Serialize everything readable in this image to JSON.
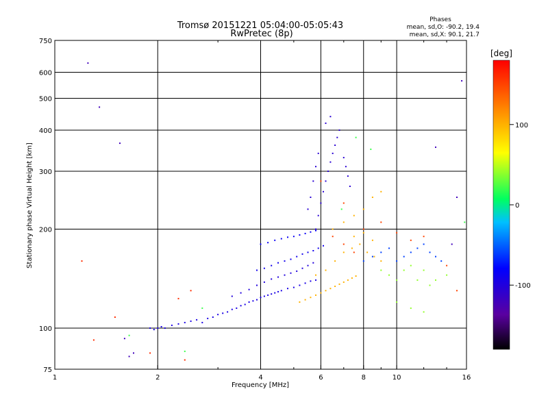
{
  "chart_data": {
    "type": "scatter",
    "title": "Tromsø 20151221 05:04:00-05:05:43",
    "subtitle": "RwPretec (8p)",
    "xlabel": "Frequency [MHz]",
    "ylabel": "Stationary phase Virtual Height [km]",
    "x_scale": "log",
    "y_scale": "log",
    "xlim": [
      1,
      16
    ],
    "ylim": [
      75,
      750
    ],
    "x_ticks": [
      1,
      2,
      4,
      6,
      8,
      10,
      16
    ],
    "y_ticks": [
      75,
      100,
      200,
      300,
      400,
      500,
      600,
      750
    ],
    "x_grid": [
      2,
      4,
      6,
      8,
      10
    ],
    "y_grid": [
      100,
      200,
      300,
      400,
      500,
      600
    ],
    "grid": true,
    "phase_stats": {
      "title": "Phases",
      "line_o": "mean, sd,O: -90.2, 19.4",
      "line_x": "mean, sd,X: 90.1, 21.7"
    },
    "colorbar": {
      "label": "[deg]",
      "ticks": [
        100,
        0,
        -100
      ],
      "range": [
        -180,
        180
      ],
      "colors": [
        "#000000",
        "#5a00a0",
        "#0000ff",
        "#00c0ff",
        "#00ff60",
        "#ffff00",
        "#ff8000",
        "#ff0000"
      ]
    },
    "clusters": [
      {
        "phase": -95,
        "points": [
          [
            1.9,
            100
          ],
          [
            1.95,
            99
          ],
          [
            2.0,
            100
          ],
          [
            2.05,
            101
          ],
          [
            2.1,
            100
          ],
          [
            2.2,
            102
          ],
          [
            2.3,
            103
          ],
          [
            2.4,
            104
          ],
          [
            2.5,
            105
          ],
          [
            2.6,
            106
          ],
          [
            2.7,
            104
          ],
          [
            2.8,
            107
          ],
          [
            2.9,
            108
          ],
          [
            3.0,
            110
          ],
          [
            3.1,
            111
          ],
          [
            3.2,
            112
          ],
          [
            3.3,
            114
          ],
          [
            3.4,
            115
          ],
          [
            3.5,
            117
          ],
          [
            3.6,
            118
          ],
          [
            3.7,
            120
          ],
          [
            3.8,
            121
          ],
          [
            3.9,
            122
          ],
          [
            4.0,
            124
          ],
          [
            4.1,
            125
          ],
          [
            4.2,
            126
          ],
          [
            4.3,
            127
          ],
          [
            4.4,
            128
          ],
          [
            4.5,
            129
          ],
          [
            4.6,
            130
          ],
          [
            4.8,
            132
          ],
          [
            5.0,
            133
          ],
          [
            5.2,
            135
          ],
          [
            5.4,
            137
          ],
          [
            5.6,
            139
          ],
          [
            5.8,
            140
          ]
        ]
      },
      {
        "phase": -100,
        "points": [
          [
            3.3,
            125
          ],
          [
            3.5,
            128
          ],
          [
            3.7,
            131
          ],
          [
            3.9,
            135
          ],
          [
            4.1,
            138
          ],
          [
            4.3,
            141
          ],
          [
            4.5,
            143
          ],
          [
            4.7,
            145
          ],
          [
            4.9,
            147
          ],
          [
            5.1,
            149
          ],
          [
            5.3,
            152
          ],
          [
            5.5,
            155
          ],
          [
            5.7,
            158
          ]
        ]
      },
      {
        "phase": -90,
        "points": [
          [
            3.9,
            150
          ],
          [
            4.1,
            152
          ],
          [
            4.3,
            155
          ],
          [
            4.5,
            158
          ],
          [
            4.7,
            160
          ],
          [
            4.9,
            162
          ],
          [
            5.1,
            165
          ],
          [
            5.3,
            168
          ],
          [
            5.5,
            170
          ],
          [
            5.7,
            172
          ],
          [
            5.9,
            175
          ],
          [
            6.1,
            178
          ]
        ]
      },
      {
        "phase": -85,
        "points": [
          [
            4.0,
            180
          ],
          [
            4.2,
            182
          ],
          [
            4.4,
            185
          ],
          [
            4.6,
            187
          ],
          [
            4.8,
            189
          ],
          [
            5.0,
            190
          ],
          [
            5.2,
            192
          ],
          [
            5.4,
            194
          ],
          [
            5.6,
            196
          ],
          [
            5.8,
            198
          ]
        ]
      },
      {
        "phase": -105,
        "points": [
          [
            5.8,
            200
          ],
          [
            5.9,
            220
          ],
          [
            6.0,
            240
          ],
          [
            6.1,
            260
          ],
          [
            6.2,
            280
          ],
          [
            6.3,
            300
          ],
          [
            6.4,
            320
          ],
          [
            6.5,
            340
          ],
          [
            6.6,
            360
          ],
          [
            6.7,
            380
          ],
          [
            6.8,
            400
          ],
          [
            7.0,
            330
          ],
          [
            7.1,
            310
          ],
          [
            7.2,
            290
          ],
          [
            7.3,
            270
          ],
          [
            5.5,
            230
          ],
          [
            5.6,
            250
          ],
          [
            5.7,
            280
          ],
          [
            5.8,
            310
          ],
          [
            5.9,
            340
          ],
          [
            6.2,
            420
          ],
          [
            6.4,
            440
          ]
        ]
      },
      {
        "phase": 100,
        "points": [
          [
            5.2,
            120
          ],
          [
            5.4,
            122
          ],
          [
            5.6,
            124
          ],
          [
            5.8,
            126
          ],
          [
            6.0,
            128
          ],
          [
            6.2,
            130
          ],
          [
            6.4,
            132
          ],
          [
            6.6,
            134
          ],
          [
            6.8,
            136
          ],
          [
            7.0,
            138
          ],
          [
            7.2,
            140
          ],
          [
            7.4,
            142
          ],
          [
            7.6,
            144
          ],
          [
            5.8,
            145
          ],
          [
            6.2,
            150
          ],
          [
            6.6,
            160
          ],
          [
            7.0,
            170
          ],
          [
            7.4,
            175
          ],
          [
            7.8,
            180
          ],
          [
            8.2,
            170
          ],
          [
            8.6,
            165
          ],
          [
            9.0,
            160
          ],
          [
            6.5,
            200
          ],
          [
            7.0,
            210
          ],
          [
            7.5,
            220
          ],
          [
            8.0,
            230
          ],
          [
            8.5,
            250
          ],
          [
            9.0,
            260
          ],
          [
            7.5,
            190
          ],
          [
            8.0,
            195
          ],
          [
            8.5,
            185
          ]
        ]
      },
      {
        "phase": -60,
        "points": [
          [
            8.0,
            160
          ],
          [
            8.5,
            165
          ],
          [
            9.0,
            170
          ],
          [
            9.5,
            175
          ],
          [
            10.0,
            160
          ],
          [
            10.5,
            165
          ],
          [
            11.0,
            170
          ],
          [
            11.5,
            175
          ],
          [
            12.0,
            180
          ],
          [
            12.5,
            170
          ],
          [
            13.0,
            165
          ],
          [
            13.5,
            160
          ]
        ]
      },
      {
        "phase": 40,
        "points": [
          [
            9.0,
            150
          ],
          [
            9.5,
            145
          ],
          [
            10.0,
            140
          ],
          [
            10.5,
            150
          ],
          [
            11.0,
            155
          ],
          [
            11.5,
            140
          ],
          [
            12.0,
            150
          ],
          [
            12.5,
            135
          ],
          [
            13.0,
            140
          ],
          [
            14.0,
            145
          ],
          [
            10.0,
            120
          ],
          [
            11.0,
            115
          ],
          [
            12.0,
            112
          ]
        ]
      },
      {
        "phase": 150,
        "points": [
          [
            6.5,
            190
          ],
          [
            7.0,
            180
          ],
          [
            7.5,
            170
          ],
          [
            8.0,
            200
          ],
          [
            9.0,
            210
          ],
          [
            10.0,
            195
          ],
          [
            11.0,
            185
          ],
          [
            12.0,
            190
          ],
          [
            14.0,
            155
          ],
          [
            15.0,
            130
          ],
          [
            6.0,
            280
          ],
          [
            7.0,
            240
          ]
        ]
      },
      {
        "phase": -120,
        "points": [
          [
            1.25,
            640
          ],
          [
            1.35,
            470
          ],
          [
            1.55,
            365
          ],
          [
            1.6,
            93
          ],
          [
            1.65,
            82
          ],
          [
            1.7,
            84
          ],
          [
            15.5,
            565
          ],
          [
            13.0,
            355
          ],
          [
            15.0,
            250
          ],
          [
            14.5,
            180
          ]
        ]
      },
      {
        "phase": 160,
        "points": [
          [
            1.2,
            160
          ],
          [
            1.5,
            108
          ],
          [
            2.3,
            123
          ],
          [
            2.5,
            130
          ],
          [
            1.9,
            84
          ],
          [
            2.4,
            80
          ],
          [
            1.3,
            92
          ]
        ]
      },
      {
        "phase": 20,
        "points": [
          [
            2.4,
            85
          ],
          [
            1.65,
            95
          ],
          [
            2.7,
            115
          ],
          [
            6.9,
            230
          ],
          [
            7.6,
            380
          ],
          [
            8.4,
            350
          ],
          [
            15.8,
            210
          ]
        ]
      }
    ]
  }
}
